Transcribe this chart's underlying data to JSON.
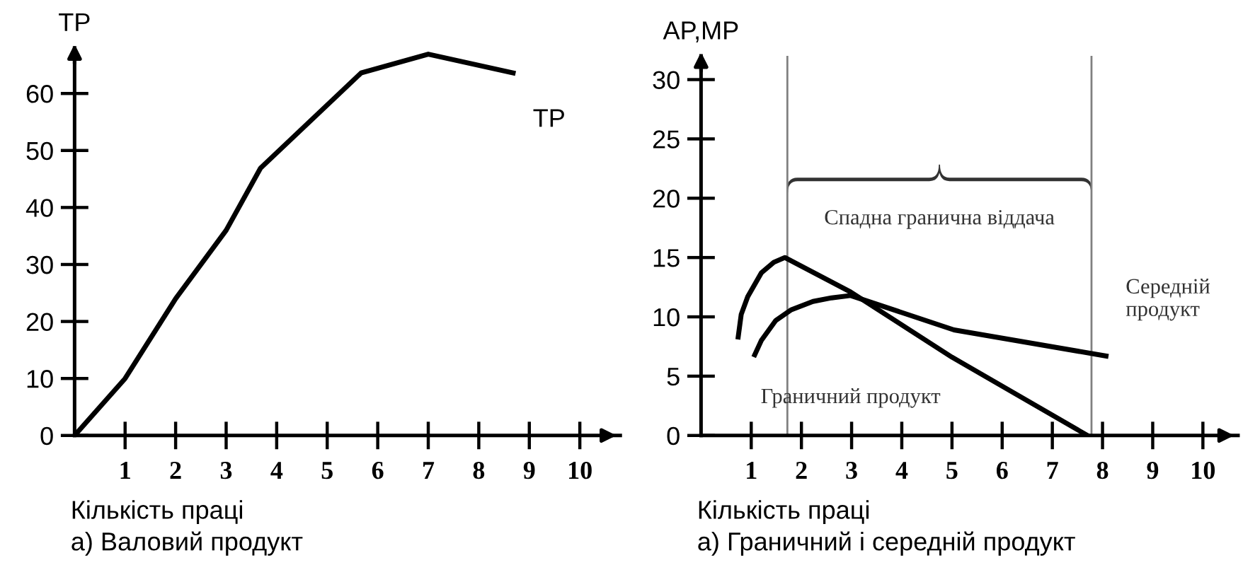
{
  "chart_data": [
    {
      "type": "line",
      "title": "а) Валовий продукт",
      "xlabel": "Кількість праці",
      "ylabel": "TP",
      "xlim": [
        0,
        10.8
      ],
      "ylim": [
        0,
        68
      ],
      "xticks": [
        1,
        2,
        3,
        4,
        5,
        6,
        7,
        8,
        9,
        10
      ],
      "yticks": [
        0,
        10,
        20,
        30,
        40,
        50,
        60
      ],
      "grid": false,
      "marker": "none",
      "line_style": "solid",
      "series": [
        {
          "name": "TP",
          "color": "#000000",
          "x": [
            0,
            1,
            2,
            3,
            3.68,
            5.67,
            7.0,
            8.68
          ],
          "values": [
            0,
            10,
            24,
            36,
            46.9,
            63.6,
            66.9,
            63.6
          ]
        }
      ]
    },
    {
      "type": "line",
      "title": "а) Граничний і середній продукт",
      "xlabel": "Кількість праці",
      "ylabel": "AP,MP",
      "xlim": [
        0,
        10.7
      ],
      "ylim": [
        0,
        32
      ],
      "xticks": [
        1,
        2,
        3,
        4,
        5,
        6,
        7,
        8,
        9,
        10
      ],
      "yticks": [
        0,
        5,
        10,
        15,
        20,
        25,
        30
      ],
      "grid": false,
      "marker": "none",
      "line_style": "solid",
      "series": [
        {
          "name": "Граничний продукт",
          "color": "#000000",
          "x": [
            0.74,
            0.8,
            0.93,
            1.2,
            1.45,
            1.67,
            2.98,
            5.0,
            7.7
          ],
          "values": [
            8.3,
            10.2,
            11.7,
            13.7,
            14.6,
            15.0,
            12.1,
            6.6,
            0
          ]
        },
        {
          "name": "Середній продукт",
          "color": "#000000",
          "x": [
            1.07,
            1.2,
            1.49,
            1.8,
            2.23,
            2.6,
            2.98,
            5.04,
            8.07
          ],
          "values": [
            6.8,
            8.0,
            9.7,
            10.6,
            11.3,
            11.6,
            11.8,
            8.9,
            6.7
          ]
        }
      ],
      "ref_lines": [
        {
          "axis": "x",
          "value": 1.72,
          "color": "#808080"
        },
        {
          "axis": "x",
          "value": 7.78,
          "color": "#808080"
        }
      ],
      "annotations": [
        "Спадна гранична віддача"
      ]
    }
  ]
}
